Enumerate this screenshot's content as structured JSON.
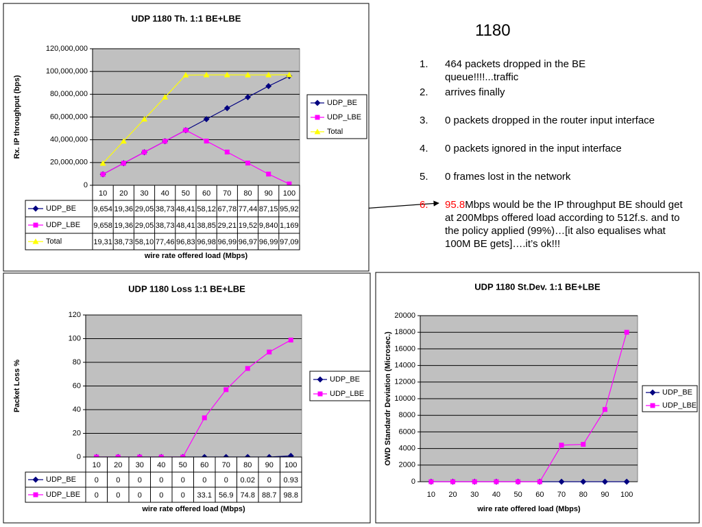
{
  "slide": {
    "title": "1180",
    "items": [
      {
        "number": "1.",
        "text": "464 packets dropped in the BE queue!!!!...traffic"
      },
      {
        "number": "2.",
        "text": "arrives finally"
      },
      {
        "number": "3.",
        "text": "0 packets dropped in the router input interface"
      },
      {
        "number": "4.",
        "text": "0 packets ignored in the input interface"
      },
      {
        "number": "5.",
        "text": "0 frames lost in the network"
      },
      {
        "number": "6.",
        "highlight": "95.8",
        "text": "Mbps would be the IP throughput BE should get at 200Mbps offered load according to 512f.s. and to the policy applied (99%)…[it also equalises what 100M BE gets]….it’s ok!!!"
      }
    ]
  },
  "chart_data": [
    {
      "type": "line",
      "title": "UDP 1180 Th. 1:1 BE+LBE",
      "y_label": "Rx. IP throughput (bps)",
      "x_label": "wire rate offered load (Mbps)",
      "categories": [
        "10",
        "20",
        "30",
        "40",
        "50",
        "60",
        "70",
        "80",
        "90",
        "100"
      ],
      "ylim": [
        0,
        120000000
      ],
      "yticks": [
        0,
        {
          "value": 20000000,
          "label": "20,000,000"
        },
        {
          "value": 40000000,
          "label": "40,000,000"
        },
        {
          "value": 60000000,
          "label": "60,000,000"
        },
        {
          "value": 80000000,
          "label": "80,000,000"
        },
        {
          "value": 100000000,
          "label": "100,000,000"
        },
        {
          "value": 120000000,
          "label": "120,000,000"
        }
      ],
      "grid": true,
      "legend": "right",
      "data_table": true,
      "series": [
        {
          "name": "UDP_BE",
          "color": "#000080",
          "marker": "diamond",
          "values": [
            9654000,
            19360000,
            29050000,
            38730000,
            48410000,
            58120000,
            67780000,
            77440000,
            87150000,
            95920000
          ],
          "value_labels": [
            "9,654",
            "19,36",
            "29,05",
            "38,73",
            "48,41",
            "58,12",
            "67,78",
            "77,44",
            "87,15",
            "95,92"
          ]
        },
        {
          "name": "UDP_LBE",
          "color": "#ff00ff",
          "marker": "square",
          "values": [
            9658000,
            19360000,
            29050000,
            38730000,
            48410000,
            38850000,
            29210000,
            19520000,
            9840000,
            1169000
          ],
          "value_labels": [
            "9,658",
            "19,36",
            "29,05",
            "38,73",
            "48,41",
            "38,85",
            "29,21",
            "19,52",
            "9,840",
            "1,169"
          ]
        },
        {
          "name": "Total",
          "color": "#ffff00",
          "marker": "triangle",
          "values": [
            19310000,
            38730000,
            58100000,
            77460000,
            96830000,
            96980000,
            96990000,
            96970000,
            96990000,
            97090000
          ],
          "value_labels": [
            "19,31",
            "38,73",
            "58,10",
            "77,46",
            "96,83",
            "96,98",
            "96,99",
            "96,97",
            "96,99",
            "97,09"
          ]
        }
      ]
    },
    {
      "type": "line",
      "title": "UDP 1180 Loss 1:1 BE+LBE",
      "y_label": "Packet Loss %",
      "x_label": "wire rate offered load (Mbps)",
      "categories": [
        "10",
        "20",
        "30",
        "40",
        "50",
        "60",
        "70",
        "80",
        "90",
        "100"
      ],
      "ylim": [
        0,
        120
      ],
      "yticks": [
        0,
        20,
        40,
        60,
        80,
        100,
        120
      ],
      "grid": true,
      "legend": "right",
      "data_table": true,
      "series": [
        {
          "name": "UDP_BE",
          "color": "#000080",
          "marker": "diamond",
          "values": [
            0,
            0,
            0,
            0,
            0,
            0,
            0,
            0.02,
            0,
            0.93
          ]
        },
        {
          "name": "UDP_LBE",
          "color": "#ff00ff",
          "marker": "square",
          "values": [
            0,
            0,
            0,
            0,
            0,
            33.1,
            56.9,
            74.8,
            88.7,
            98.8
          ]
        }
      ]
    },
    {
      "type": "line",
      "title": "UDP 1180 St.Dev. 1:1 BE+LBE",
      "y_label": "OWD Standardr Deviation (Microsec.)",
      "x_label": "wire rate offered load (Mbps)",
      "categories": [
        "10",
        "20",
        "30",
        "40",
        "50",
        "60",
        "70",
        "80",
        "90",
        "100"
      ],
      "ylim": [
        0,
        20000
      ],
      "yticks": [
        0,
        2000,
        4000,
        6000,
        8000,
        10000,
        12000,
        14000,
        16000,
        18000,
        20000
      ],
      "grid": true,
      "legend": "right",
      "data_table": false,
      "series": [
        {
          "name": "UDP_BE",
          "color": "#000080",
          "marker": "diamond",
          "values": [
            0,
            0,
            0,
            0,
            0,
            0,
            0,
            0,
            0,
            0
          ]
        },
        {
          "name": "UDP_LBE",
          "color": "#ff00ff",
          "marker": "square",
          "values": [
            0,
            0,
            0,
            0,
            0,
            0,
            4400,
            4500,
            8700,
            18000
          ]
        }
      ]
    }
  ]
}
